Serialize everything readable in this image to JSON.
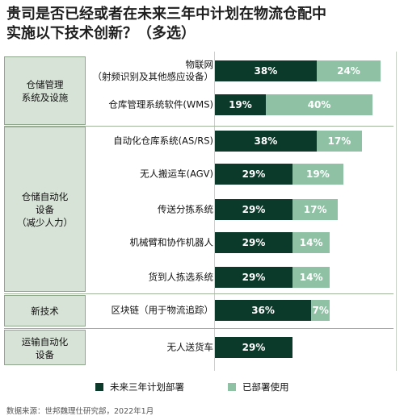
{
  "title_lines": [
    "贵司是否已经或者在未来三年中计划在物流仓配中",
    "实施以下技术创新？（多选）"
  ],
  "groups": [
    {
      "label_lines": [
        "仓储管理",
        "系统及设施"
      ]
    },
    {
      "label_lines": [
        "仓储自动化",
        "设备",
        "（减少人力）"
      ]
    },
    {
      "label_lines": [
        "新技术"
      ]
    },
    {
      "label_lines": [
        "运输自动化",
        "设备"
      ]
    }
  ],
  "chart_data": {
    "type": "bar",
    "stacked": true,
    "orientation": "horizontal",
    "categories": [
      [
        "物联网",
        "（射频识别及其他感应设备）"
      ],
      [
        "仓库管理系统软件(WMS)"
      ],
      [
        "自动化仓库系统(AS/RS)"
      ],
      [
        "无人搬运车(AGV)"
      ],
      [
        "传送分拣系统"
      ],
      [
        "机械臂和协作机器人"
      ],
      [
        "货到人拣选系统"
      ],
      [
        "区块链（用于物流追踪）"
      ],
      [
        "无人送货车"
      ]
    ],
    "series": [
      {
        "name": "未来三年计划部署",
        "color": "#0c3a2a",
        "values": [
          38,
          19,
          38,
          29,
          29,
          29,
          29,
          36,
          29
        ]
      },
      {
        "name": "已部署使用",
        "color": "#8fc2a5",
        "values": [
          24,
          40,
          17,
          19,
          17,
          14,
          14,
          7,
          null
        ]
      }
    ],
    "value_labels": [
      [
        "38%",
        "19%",
        "38%",
        "29%",
        "29%",
        "29%",
        "29%",
        "36%",
        "29%"
      ],
      [
        "24%",
        "40%",
        "17%",
        "19%",
        "17%",
        "14%",
        "14%",
        "7%",
        ""
      ]
    ],
    "legend_position": "bottom"
  },
  "source": "数据来源：世邦魏理仕研究部，2022年1月"
}
